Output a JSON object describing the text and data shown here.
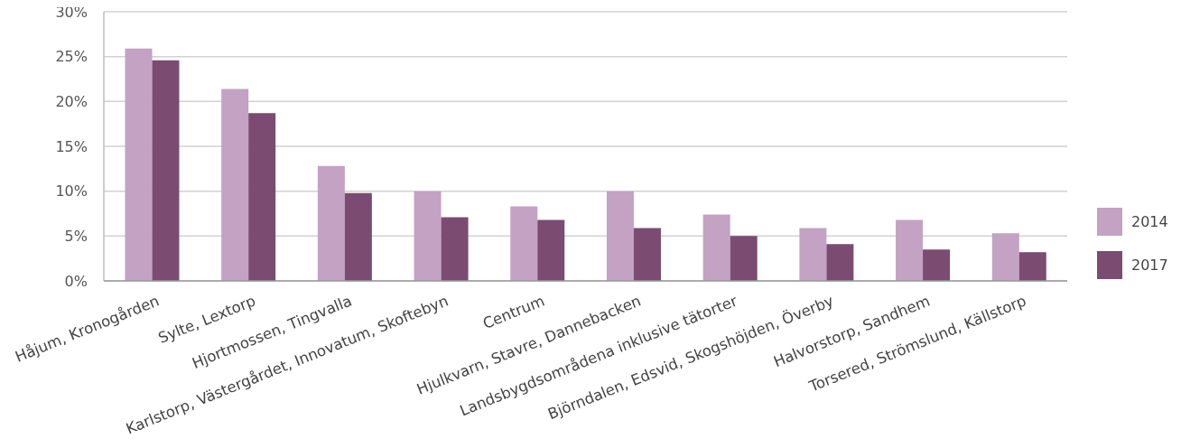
{
  "chart_data": {
    "type": "bar",
    "categories": [
      "Håjum, Kronogården",
      "Sylte, Lextorp",
      "Hjortmossen, Tingvalla",
      "Karlstorp, Västergårdet, Innovatum, Skoftebyn",
      "Centrum",
      "Hjulkvarn, Stavre, Dannebacken",
      "Landsbygdsområdena inklusive tätorter",
      "Björndalen, Edsvid, Skogshöjden, Överby",
      "Halvorstorp, Sandhem",
      "Torsered, Strömslund, Källstorp"
    ],
    "series": [
      {
        "name": "2014",
        "color": "#c3a2c3",
        "values": [
          25.9,
          21.4,
          12.8,
          10.0,
          8.3,
          10.0,
          7.4,
          5.9,
          6.8,
          5.3
        ]
      },
      {
        "name": "2017",
        "color": "#7b4b72",
        "values": [
          24.6,
          18.7,
          9.8,
          7.1,
          6.8,
          5.9,
          5.0,
          4.1,
          3.5,
          3.2
        ]
      }
    ],
    "ylim": [
      0,
      30
    ],
    "yticks": [
      {
        "value": 0,
        "label": "0%"
      },
      {
        "value": 5,
        "label": "5%"
      },
      {
        "value": 10,
        "label": "10%"
      },
      {
        "value": 15,
        "label": "15%"
      },
      {
        "value": 20,
        "label": "20%"
      },
      {
        "value": 25,
        "label": "25%"
      },
      {
        "value": 30,
        "label": "30%"
      }
    ],
    "grid": "y",
    "legend": "right"
  }
}
